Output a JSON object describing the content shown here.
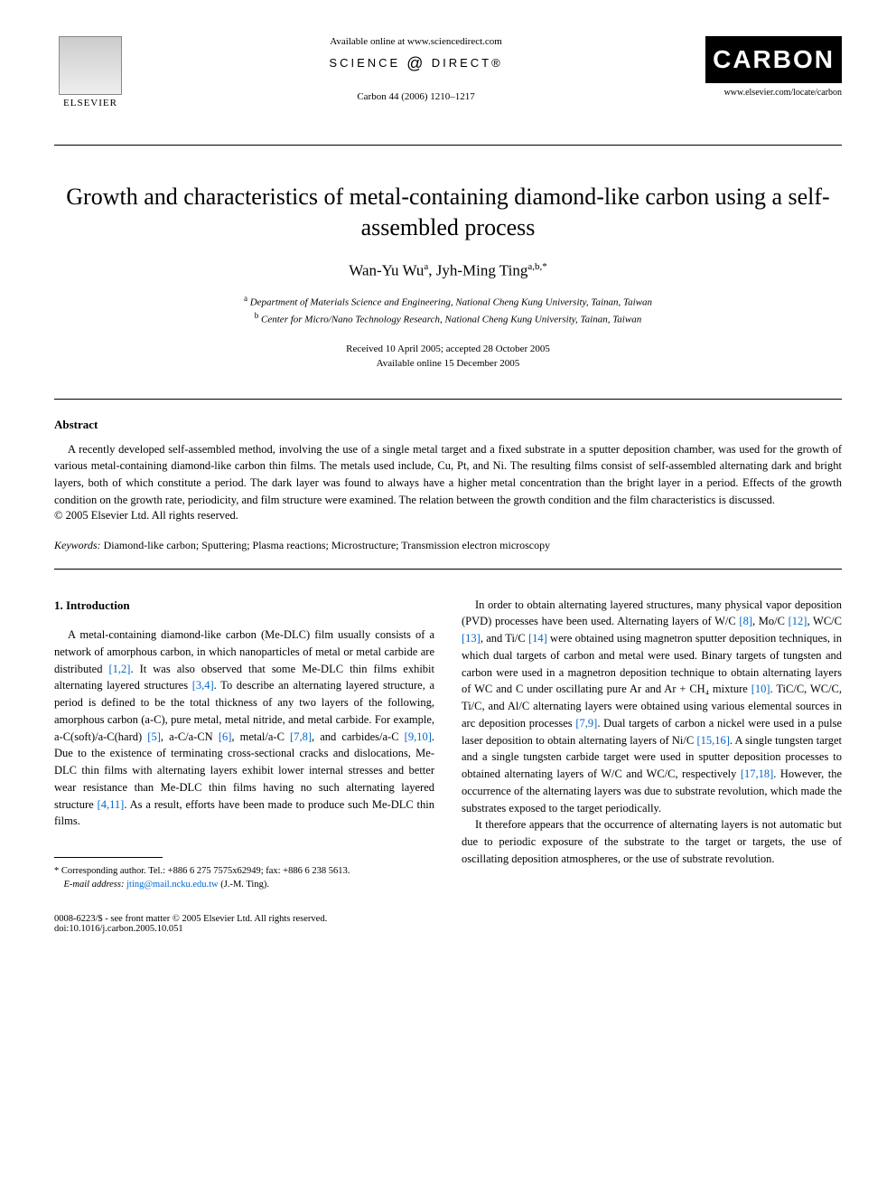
{
  "header": {
    "available_online": "Available online at www.sciencedirect.com",
    "science_direct": "SCIENCE",
    "science_direct_suffix": "DIRECT®",
    "journal_ref": "Carbon 44 (2006) 1210–1217",
    "elsevier": "ELSEVIER",
    "carbon": "CARBON",
    "carbon_url": "www.elsevier.com/locate/carbon"
  },
  "title": "Growth and characteristics of metal-containing diamond-like carbon using a self-assembled process",
  "authors": "Wan-Yu Wu",
  "authors_sup1": "a",
  "authors_sep": ", Jyh-Ming Ting",
  "authors_sup2": "a,b,*",
  "affiliation_a": "Department of Materials Science and Engineering, National Cheng Kung University, Tainan, Taiwan",
  "affiliation_b": "Center for Micro/Nano Technology Research, National Cheng Kung University, Tainan, Taiwan",
  "dates_line1": "Received 10 April 2005; accepted 28 October 2005",
  "dates_line2": "Available online 15 December 2005",
  "abstract_heading": "Abstract",
  "abstract_text": "A recently developed self-assembled method, involving the use of a single metal target and a fixed substrate in a sputter deposition chamber, was used for the growth of various metal-containing diamond-like carbon thin films. The metals used include, Cu, Pt, and Ni. The resulting films consist of self-assembled alternating dark and bright layers, both of which constitute a period. The dark layer was found to always have a higher metal concentration than the bright layer in a period. Effects of the growth condition on the growth rate, periodicity, and film structure were examined. The relation between the growth condition and the film characteristics is discussed.",
  "copyright": "© 2005 Elsevier Ltd. All rights reserved.",
  "keywords_label": "Keywords:",
  "keywords_text": " Diamond-like carbon; Sputtering; Plasma reactions; Microstructure; Transmission electron microscopy",
  "section1_heading": "1. Introduction",
  "col1_p1_a": "A metal-containing diamond-like carbon (Me-DLC) film usually consists of a network of amorphous carbon, in which nanoparticles of metal or metal carbide are distributed ",
  "ref_1_2": "[1,2]",
  "col1_p1_b": ". It was also observed that some Me-DLC thin films exhibit alternating layered structures ",
  "ref_3_4": "[3,4]",
  "col1_p1_c": ". To describe an alternating layered structure, a period is defined to be the total thickness of any two layers of the following, amorphous carbon (a-C), pure metal, metal nitride, and metal carbide. For example, a-C(soft)/a-C(hard) ",
  "ref_5": "[5]",
  "col1_p1_d": ", a-C/a-CN ",
  "ref_6": "[6]",
  "col1_p1_e": ", metal/a-C ",
  "ref_7_8": "[7,8]",
  "col1_p1_f": ", and carbides/a-C ",
  "ref_9_10": "[9,10]",
  "col1_p1_g": ". Due to the existence of terminating cross-sectional cracks and dislocations, Me-DLC thin films with alternating layers exhibit lower internal stresses and better wear resistance than Me-DLC thin films having no such alternating layered structure ",
  "ref_4_11": "[4,11]",
  "col1_p1_h": ". As a result, efforts have been made to produce such Me-DLC thin films.",
  "col2_p1_a": "In order to obtain alternating layered structures, many physical vapor deposition (PVD) processes have been used. Alternating layers of W/C ",
  "ref_8": "[8]",
  "col2_p1_b": ", Mo/C ",
  "ref_12": "[12]",
  "col2_p1_c": ", WC/C ",
  "ref_13": "[13]",
  "col2_p1_d": ", and Ti/C ",
  "ref_14": "[14]",
  "col2_p1_e": " were obtained using magnetron sputter deposition techniques, in which dual targets of carbon and metal were used. Binary targets of tungsten and carbon were used in a magnetron deposition technique to obtain alternating layers of WC and C under oscillating pure Ar and Ar + CH₄ mixture ",
  "ref_10": "[10]",
  "col2_p1_f": ". TiC/C, WC/C, Ti/C, and Al/C alternating layers were obtained using various elemental sources in arc deposition processes ",
  "ref_7_9": "[7,9]",
  "col2_p1_g": ". Dual targets of carbon a nickel were used in a pulse laser deposition to obtain alternating layers of Ni/C ",
  "ref_15_16": "[15,16]",
  "col2_p1_h": ". A single tungsten target and a single tungsten carbide target were used in sputter deposition processes to obtained alternating layers of W/C and WC/C, respectively ",
  "ref_17_18": "[17,18]",
  "col2_p1_i": ". However, the occurrence of the alternating layers was due to substrate revolution, which made the substrates exposed to the target periodically.",
  "col2_p2": "It therefore appears that the occurrence of alternating layers is not automatic but due to periodic exposure of the substrate to the target or targets, the use of oscillating deposition atmospheres, or the use of substrate revolution.",
  "footnote_corr": "* Corresponding author. Tel.: +886 6 275 7575x62949; fax: +886 6 238 5613.",
  "footnote_email_label": "E-mail address:",
  "footnote_email": "jting@mail.ncku.edu.tw",
  "footnote_email_suffix": " (J.-M. Ting).",
  "footer_line1": "0008-6223/$ - see front matter © 2005 Elsevier Ltd. All rights reserved.",
  "footer_line2": "doi:10.1016/j.carbon.2005.10.051"
}
